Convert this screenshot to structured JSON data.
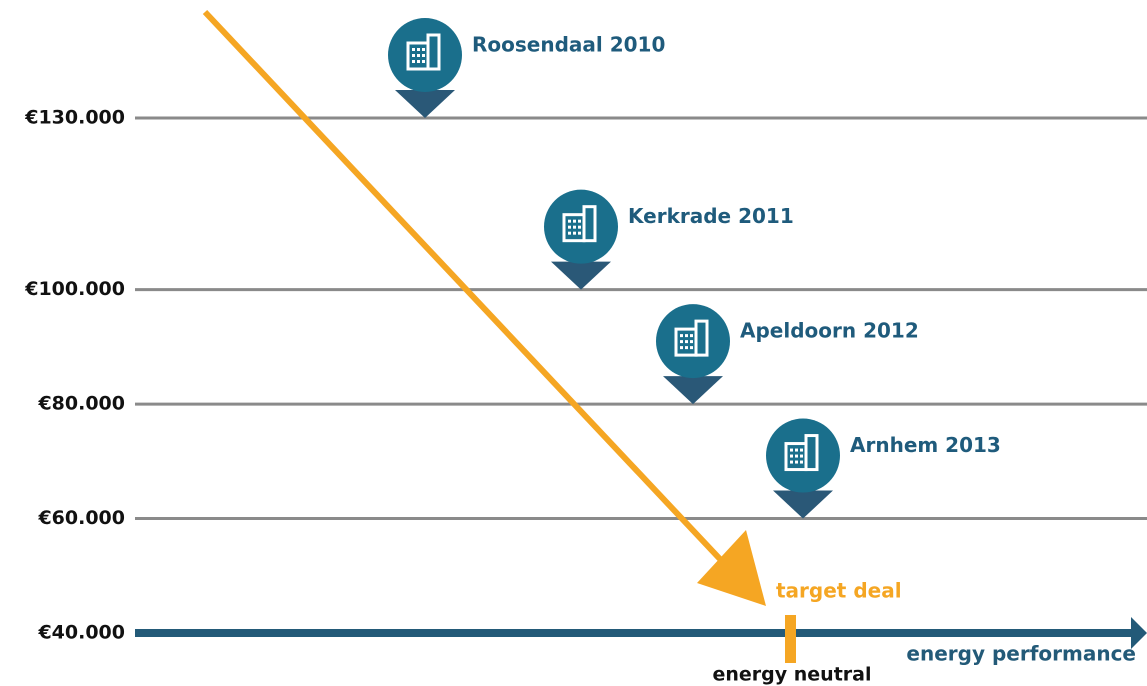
{
  "chart_data": {
    "type": "scatter",
    "categories": [
      "Roosendaal 2010",
      "Kerkrade 2011",
      "Apeldoorn 2012",
      "Arnhem 2013"
    ],
    "values": [
      130000,
      100000,
      80000,
      60000
    ],
    "ylim": [
      40000,
      130000
    ],
    "yticks": [
      {
        "value": 40000,
        "label": "€40.000"
      },
      {
        "value": 60000,
        "label": "€60.000"
      },
      {
        "value": 80000,
        "label": "€80.000"
      },
      {
        "value": 100000,
        "label": "€100.000"
      },
      {
        "value": 130000,
        "label": "€130.000"
      }
    ],
    "grid": true,
    "x_label": "energy performance",
    "annotations": [
      "target deal",
      "energy neutral"
    ],
    "pin_color": "#1a6f8c",
    "pointer_color": "#2a5877",
    "label_color": "#1f5b7c",
    "arrow_color": "#f5a623",
    "axis_color": "#235a78",
    "grid_color": "#8a8a8a"
  }
}
